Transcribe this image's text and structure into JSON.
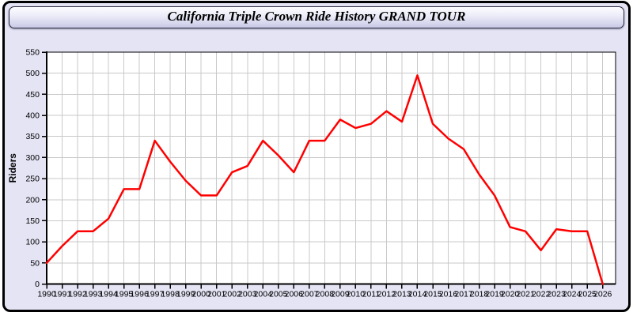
{
  "window": {
    "title": "California Triple Crown Ride History GRAND TOUR"
  },
  "colors": {
    "page_background": "#e4e4f5",
    "titlebar_top": "#fdfdff",
    "titlebar_bottom": "#c9c9e6",
    "plot_background": "#ffffff",
    "gridline": "#c9c9c9",
    "axis": "#000000",
    "series_line": "#ff0000",
    "text": "#000000"
  },
  "chart_data": {
    "type": "line",
    "title": "California Triple Crown Ride History GRAND TOUR",
    "xlabel": "",
    "ylabel": "Riders",
    "x": [
      1990,
      1991,
      1992,
      1993,
      1994,
      1995,
      1996,
      1997,
      1998,
      1999,
      2000,
      2001,
      2002,
      2003,
      2004,
      2005,
      2006,
      2007,
      2008,
      2009,
      2010,
      2011,
      2012,
      2013,
      2014,
      2015,
      2016,
      2017,
      2018,
      2019,
      2020,
      2021,
      2022,
      2023,
      2024,
      2025,
      2026
    ],
    "series": [
      {
        "name": "Riders",
        "color": "#ff0000",
        "values": [
          50,
          90,
          125,
          125,
          155,
          225,
          225,
          340,
          290,
          245,
          210,
          210,
          265,
          280,
          340,
          305,
          265,
          340,
          340,
          390,
          370,
          380,
          410,
          385,
          495,
          380,
          345,
          320,
          260,
          210,
          135,
          125,
          80,
          130,
          125,
          125,
          0
        ]
      }
    ],
    "ylim": [
      0,
      550
    ],
    "ytick_step": 50,
    "grid": true,
    "legend": "none"
  }
}
